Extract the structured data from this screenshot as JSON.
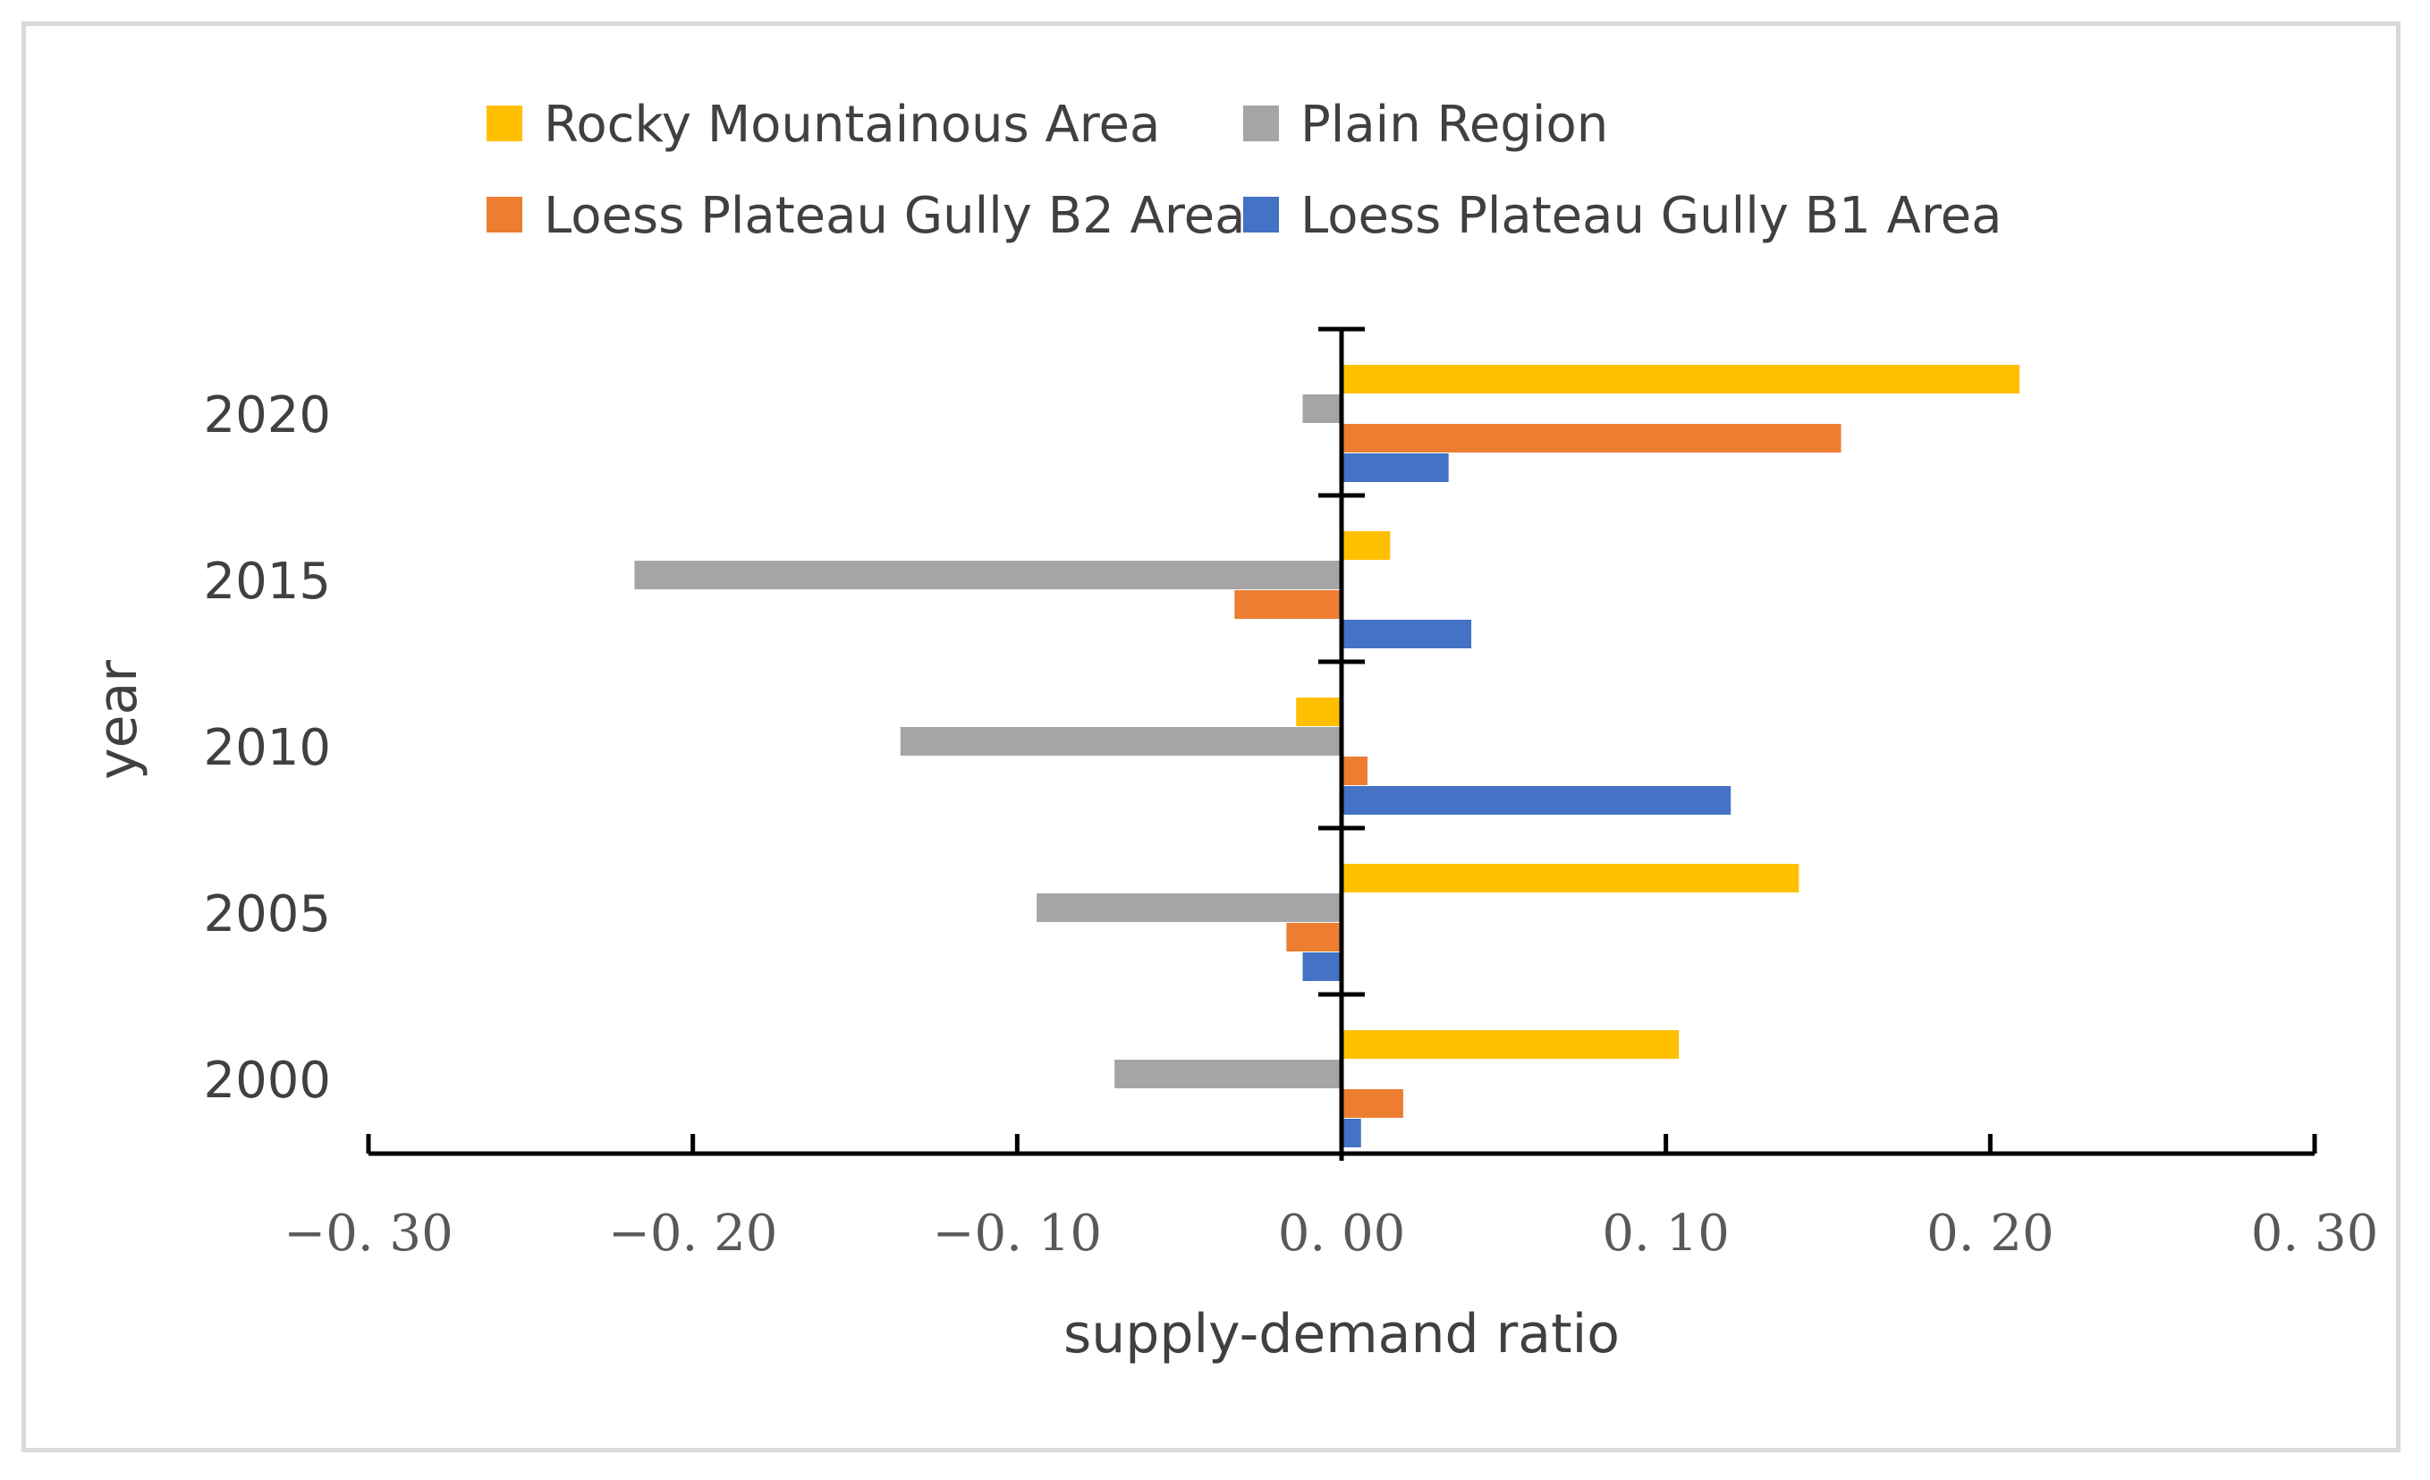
{
  "chart_data": {
    "type": "bar",
    "orientation": "horizontal",
    "title": "",
    "xlabel": "supply-demand ratio",
    "ylabel": "year",
    "xlim": [
      -0.3,
      0.3
    ],
    "xticks": [
      -0.3,
      -0.2,
      -0.1,
      0.0,
      0.1,
      0.2,
      0.3
    ],
    "xtick_labels": [
      "−0. 30",
      "−0. 20",
      "−0. 10",
      "0. 00",
      "0. 10",
      "0. 20",
      "0. 30"
    ],
    "categories": [
      "2020",
      "2015",
      "2010",
      "2005",
      "2000"
    ],
    "series": [
      {
        "name": "Rocky Mountainous Area",
        "color": "#FFC000",
        "values": [
          0.209,
          0.015,
          -0.014,
          0.141,
          0.104
        ]
      },
      {
        "name": "Plain Region",
        "color": "#A5A5A5",
        "values": [
          -0.012,
          -0.218,
          -0.136,
          -0.094,
          -0.07
        ]
      },
      {
        "name": "Loess Plateau Gully B2 Area",
        "color": "#ED7D31",
        "values": [
          0.154,
          -0.033,
          0.008,
          -0.017,
          0.019
        ]
      },
      {
        "name": "Loess Plateau Gully B1 Area",
        "color": "#4472C4",
        "values": [
          0.033,
          0.04,
          0.12,
          -0.012,
          0.006
        ]
      }
    ],
    "legend_position": "top",
    "grid": false
  }
}
